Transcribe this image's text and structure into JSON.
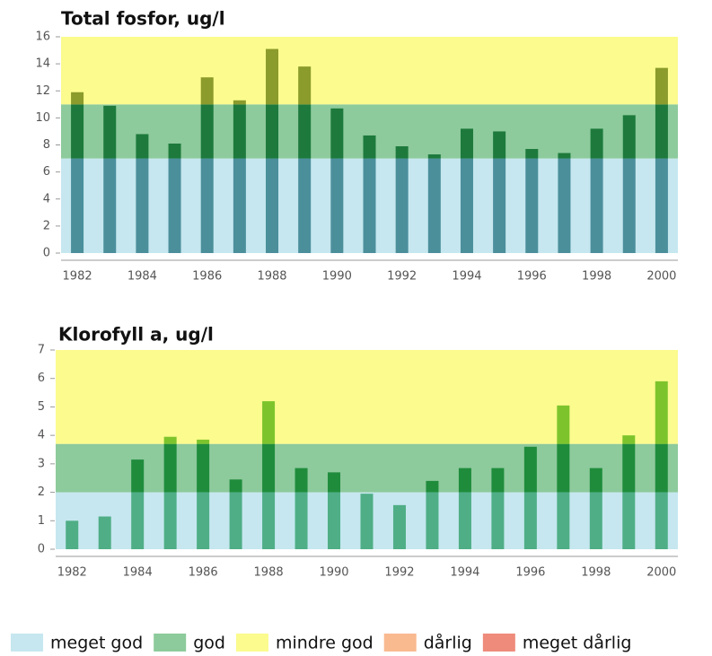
{
  "chart_data": [
    {
      "type": "bar",
      "title": "Total fosfor, ug/l",
      "categories": [
        "1982",
        null,
        "1984",
        null,
        "1986",
        null,
        "1988",
        null,
        "1990",
        null,
        "1992",
        null,
        "1994",
        null,
        "1996",
        null,
        "1998",
        null,
        "2000"
      ],
      "values": [
        11.9,
        10.9,
        8.8,
        8.1,
        13.0,
        11.3,
        15.1,
        13.8,
        10.7,
        8.7,
        7.9,
        7.3,
        9.2,
        9.0,
        7.7,
        7.4,
        9.2,
        10.2,
        13.7
      ],
      "ylim": [
        0,
        16
      ],
      "yticks": [
        0,
        2,
        4,
        6,
        8,
        10,
        12,
        14,
        16
      ],
      "bands": [
        {
          "from": 0,
          "to": 7,
          "color": "#c6e7ef",
          "bar_color": "#4b8f9b"
        },
        {
          "from": 7,
          "to": 11,
          "color": "#8dca9c",
          "bar_color": "#1d7a3c"
        },
        {
          "from": 11,
          "to": 16,
          "color": "#fbfb8e",
          "bar_color": "#8b9b2c"
        }
      ]
    },
    {
      "type": "bar",
      "title": "Klorofyll a, ug/l",
      "categories": [
        "1982",
        null,
        "1984",
        null,
        "1986",
        null,
        "1988",
        null,
        "1990",
        null,
        "1992",
        null,
        "1994",
        null,
        "1996",
        null,
        "1998",
        null,
        "2000"
      ],
      "values": [
        1.0,
        1.15,
        3.15,
        3.95,
        3.85,
        2.45,
        5.2,
        2.85,
        2.7,
        1.95,
        1.55,
        2.4,
        2.85,
        2.85,
        3.6,
        5.05,
        2.85,
        4.0,
        5.9
      ],
      "ylim": [
        0,
        7
      ],
      "yticks": [
        0,
        1,
        2,
        3,
        4,
        5,
        6,
        7
      ],
      "bands": [
        {
          "from": 0,
          "to": 2,
          "color": "#c6e7ef",
          "bar_color": "#4fae86"
        },
        {
          "from": 2,
          "to": 3.7,
          "color": "#8dca9c",
          "bar_color": "#1f8c3c"
        },
        {
          "from": 3.7,
          "to": 7,
          "color": "#fbfb8e",
          "bar_color": "#7dc42c"
        }
      ]
    }
  ],
  "legend": [
    {
      "name": "meget god",
      "color": "#c6e7ef"
    },
    {
      "name": "god",
      "color": "#8dca9c"
    },
    {
      "name": "mindre god",
      "color": "#fbfb8e"
    },
    {
      "name": "dårlig",
      "color": "#f9ba90"
    },
    {
      "name": "meget dårlig",
      "color": "#ee8b7b"
    }
  ]
}
